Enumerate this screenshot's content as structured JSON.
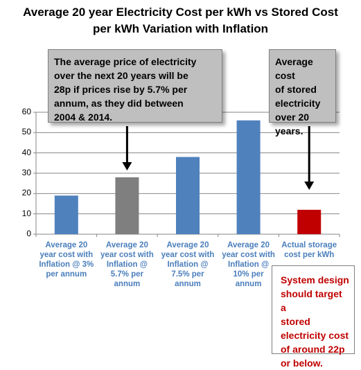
{
  "chart_data": {
    "type": "bar",
    "title_lines": [
      "Average 20 year Electricity Cost per kWh vs Stored Cost",
      "per kWh Variation with Inflation"
    ],
    "categories": [
      [
        "Average 20",
        "year cost with",
        "Inflation @ 3%",
        "per annum"
      ],
      [
        "Average 20",
        "year cost with",
        "Inflation @",
        "5.7% per",
        "annum"
      ],
      [
        "Average 20",
        "year cost with",
        "Inflation @",
        "7.5% per",
        "annum"
      ],
      [
        "Average 20",
        "year cost with",
        "Inflation @",
        "10% per",
        "annum"
      ],
      [
        "Actual storage",
        "cost per kWh"
      ]
    ],
    "values": [
      19,
      28,
      38,
      56,
      12
    ],
    "bar_colors": [
      "#4f81bd",
      "#7f7f7f",
      "#4f81bd",
      "#4f81bd",
      "#c00000"
    ],
    "ylim": [
      0,
      60
    ],
    "yticks": [
      0,
      10,
      20,
      30,
      40,
      50,
      60
    ],
    "grid": true,
    "annotations": {
      "price_callout": [
        "The average price of electricity",
        "over the next 20 years will be",
        "28p if prices rise by 5.7% per",
        "annum, as they did between",
        "2004 & 2014."
      ],
      "stored_callout": [
        "Average cost",
        "of stored",
        "electricity",
        "over 20",
        "years."
      ],
      "design_note": [
        "System design",
        "should target a",
        "stored",
        "electricity cost",
        "of around 22p",
        "or below."
      ]
    }
  }
}
